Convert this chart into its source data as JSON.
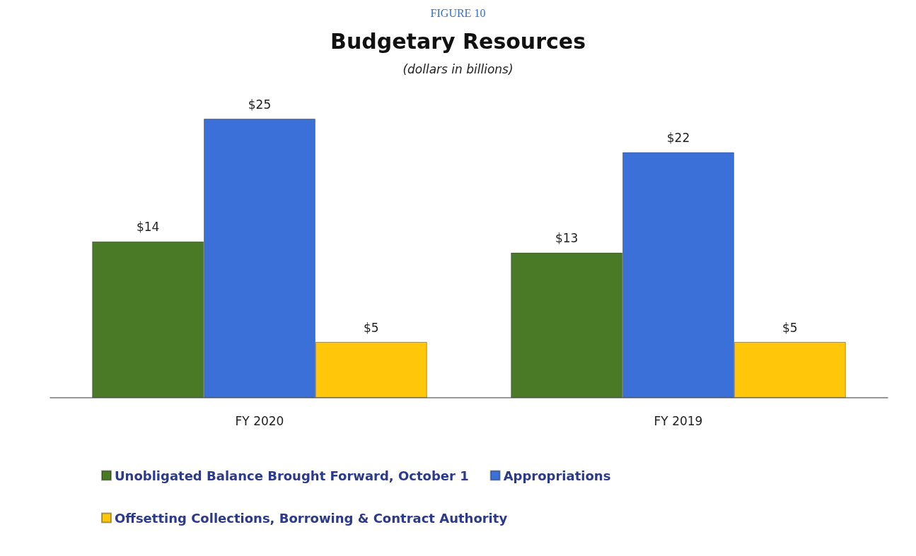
{
  "chart_data": {
    "type": "bar",
    "title": "Budgetary Resources",
    "subtitle": "(dollars in billions)",
    "annotations": [
      "FIGURE 10"
    ],
    "categories": [
      "FY 2020",
      "FY 2019"
    ],
    "series": [
      {
        "name": "Unobligated Balance Brought Forward, October 1",
        "color": "#4a7a26",
        "values": [
          14,
          13
        ],
        "value_labels": [
          "$14",
          "$13"
        ]
      },
      {
        "name": "Appropriations",
        "color": "#3a70d8",
        "values": [
          25,
          22
        ],
        "value_labels": [
          "$25",
          "$22"
        ]
      },
      {
        "name": "Offsetting Collections, Borrowing & Contract Authority",
        "color": "#ffc60a",
        "values": [
          5,
          5
        ],
        "value_labels": [
          "$5",
          "$5"
        ]
      }
    ],
    "legend": "bottom left"
  }
}
